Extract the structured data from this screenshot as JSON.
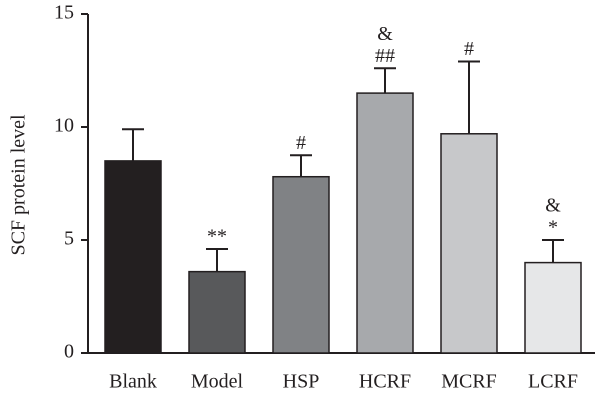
{
  "chart_data": {
    "type": "bar",
    "y_label": "SCF protein level",
    "categories": [
      "Blank",
      "Model",
      "HSP",
      "HCRF",
      "MCRF",
      "LCRF"
    ],
    "values": [
      8.5,
      3.6,
      7.8,
      11.5,
      9.7,
      4.0
    ],
    "errors": [
      1.4,
      1.0,
      0.95,
      1.1,
      3.2,
      1.0
    ],
    "annotations": [
      [],
      [
        "**"
      ],
      [
        "#"
      ],
      [
        "&",
        "##"
      ],
      [
        "#"
      ],
      [
        "&",
        "*"
      ]
    ],
    "colors": [
      "#231f20",
      "#58595b",
      "#808285",
      "#a7a9ac",
      "#c7c8ca",
      "#e6e7e8"
    ],
    "ylim": [
      0,
      15
    ],
    "yticks": [
      0,
      5,
      10,
      15
    ],
    "grid": false
  }
}
